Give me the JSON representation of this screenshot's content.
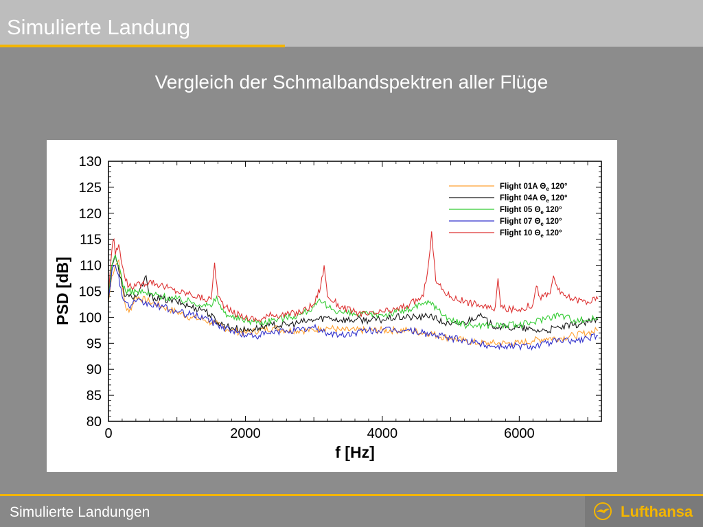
{
  "header": {
    "title": "Simulierte Landung"
  },
  "slide": {
    "subtitle": "Vergleich der Schmalbandspektren aller Flüge"
  },
  "footer": {
    "text": "Simulierte Landungen",
    "logo_text": "Lufthansa"
  },
  "colors": {
    "accent": "#f3b500",
    "header_bg": "#bdbdbd",
    "slide_bg": "#8c8c8c"
  },
  "chart_data": {
    "type": "line",
    "title": "",
    "xlabel": "f [Hz]",
    "ylabel": "PSD [dB]",
    "xlim": [
      0,
      7200
    ],
    "ylim": [
      80,
      130
    ],
    "xticks": [
      0,
      2000,
      4000,
      6000
    ],
    "yticks": [
      80,
      85,
      90,
      95,
      100,
      105,
      110,
      115,
      120,
      125,
      130
    ],
    "grid": false,
    "legend_position": "top-right",
    "series": [
      {
        "name": "Flight 01A Θ",
        "angle": "120°",
        "color": "#ffa030",
        "x": [
          0,
          50,
          100,
          150,
          200,
          250,
          300,
          400,
          600,
          800,
          1000,
          1200,
          1400,
          1500,
          1550,
          1600,
          1800,
          2000,
          2200,
          2400,
          2600,
          2800,
          3000,
          3100,
          3200,
          3400,
          3600,
          3800,
          4000,
          4200,
          4400,
          4600,
          4700,
          4800,
          5000,
          5200,
          5400,
          5600,
          5800,
          6000,
          6200,
          6400,
          6600,
          6800,
          7000,
          7150
        ],
        "y": [
          103,
          108,
          110,
          111,
          106,
          102,
          101,
          104,
          103,
          102,
          101,
          100,
          99.5,
          99,
          99,
          98.5,
          97.5,
          97,
          97.5,
          98,
          97.5,
          97.5,
          97.5,
          98,
          98,
          97.5,
          97.5,
          97.5,
          97.5,
          97.5,
          97.5,
          97,
          97,
          96.5,
          96,
          95.5,
          95,
          95,
          95,
          95,
          95.5,
          96,
          96,
          96.5,
          97,
          97.5
        ]
      },
      {
        "name": "Flight 04A Θ",
        "angle": "120°",
        "color": "#1a1a1a",
        "x": [
          0,
          50,
          100,
          150,
          200,
          250,
          300,
          400,
          500,
          550,
          600,
          800,
          1000,
          1200,
          1400,
          1600,
          1800,
          2000,
          2200,
          2400,
          2600,
          2800,
          3000,
          3200,
          3400,
          3600,
          3800,
          4000,
          4200,
          4400,
          4600,
          4700,
          4800,
          5000,
          5200,
          5400,
          5600,
          5800,
          6000,
          6200,
          6400,
          6600,
          6800,
          7000,
          7150
        ],
        "y": [
          103,
          110,
          112,
          109,
          106,
          104,
          104,
          104,
          106,
          108,
          104,
          103.5,
          103,
          102,
          101.5,
          99,
          98,
          97.5,
          98,
          98.5,
          98.5,
          99,
          99.5,
          100,
          99.5,
          99.5,
          99.5,
          99.5,
          100,
          100,
          100,
          100.5,
          99.5,
          98.5,
          99,
          100.5,
          98.5,
          98,
          98,
          97.5,
          97.5,
          98,
          98.5,
          99,
          99.5
        ]
      },
      {
        "name": "Flight 05 Θ",
        "angle": "120°",
        "color": "#33cc33",
        "x": [
          0,
          50,
          100,
          150,
          200,
          250,
          300,
          400,
          600,
          800,
          1000,
          1200,
          1400,
          1500,
          1580,
          1650,
          1800,
          2000,
          2200,
          2400,
          2600,
          2800,
          3000,
          3100,
          3200,
          3400,
          3600,
          3800,
          4000,
          4200,
          4400,
          4600,
          4700,
          4750,
          4800,
          5000,
          5200,
          5400,
          5600,
          5800,
          6000,
          6200,
          6400,
          6600,
          6800,
          7000,
          7150
        ],
        "y": [
          104,
          110,
          112,
          110,
          107,
          105,
          105,
          105,
          104.5,
          104,
          103.5,
          103,
          102.5,
          102,
          104,
          101.5,
          100,
          99.5,
          99,
          99.5,
          100,
          100.5,
          102,
          103,
          102,
          101,
          100.5,
          100.5,
          100.5,
          101,
          101.5,
          102.5,
          103,
          102.5,
          101.5,
          99.5,
          98.5,
          98.5,
          98.5,
          98.5,
          98.5,
          99,
          100,
          100.5,
          99.5,
          99.5,
          100
        ]
      },
      {
        "name": "Flight 07 Θ",
        "angle": "120°",
        "color": "#3333cc",
        "x": [
          0,
          50,
          100,
          150,
          200,
          250,
          300,
          400,
          600,
          800,
          1000,
          1200,
          1400,
          1600,
          1800,
          2000,
          2200,
          2400,
          2600,
          2800,
          3000,
          3200,
          3400,
          3600,
          3800,
          4000,
          4200,
          4400,
          4600,
          4800,
          5000,
          5200,
          5400,
          5600,
          5800,
          6000,
          6200,
          6400,
          6600,
          6800,
          7000,
          7150
        ],
        "y": [
          104,
          109,
          110,
          108,
          104,
          103,
          102,
          103,
          102.5,
          102,
          101,
          100.5,
          100,
          98.5,
          97.5,
          96.5,
          96.5,
          97,
          97.5,
          97.5,
          98,
          97,
          96.5,
          97,
          97.5,
          97.5,
          97.5,
          97.5,
          97,
          96.5,
          96,
          95.5,
          95,
          94.5,
          94.5,
          94.5,
          94.5,
          95,
          95.5,
          95.5,
          96,
          96.5
        ]
      },
      {
        "name": "Flight 10 Θ",
        "angle": "120°",
        "color": "#dd3333",
        "x": [
          0,
          50,
          80,
          100,
          150,
          200,
          250,
          300,
          400,
          600,
          800,
          1000,
          1200,
          1400,
          1500,
          1550,
          1600,
          1700,
          1800,
          2000,
          2200,
          2400,
          2600,
          2800,
          3000,
          3100,
          3150,
          3200,
          3300,
          3400,
          3600,
          3800,
          4000,
          4200,
          4400,
          4600,
          4680,
          4720,
          4780,
          4900,
          5000,
          5200,
          5400,
          5600,
          5650,
          5690,
          5730,
          5800,
          6000,
          6200,
          6250,
          6300,
          6350,
          6450,
          6500,
          6550,
          6600,
          6800,
          7000,
          7150
        ],
        "y": [
          105,
          113,
          115,
          112,
          114,
          110,
          107,
          106,
          106,
          107,
          106,
          105,
          104.5,
          103.5,
          103.5,
          110.5,
          104,
          102,
          101,
          100,
          99.5,
          100.5,
          100.5,
          101,
          102.5,
          106,
          110,
          104,
          103,
          102,
          101,
          100.5,
          101,
          101.5,
          102.5,
          104,
          111,
          116.5,
          107,
          105,
          104,
          103,
          102.5,
          101.5,
          102,
          107.5,
          102,
          101.5,
          101.5,
          102.5,
          106,
          104,
          104,
          104.5,
          108,
          106,
          104.5,
          103.5,
          103,
          103.5
        ]
      }
    ]
  }
}
